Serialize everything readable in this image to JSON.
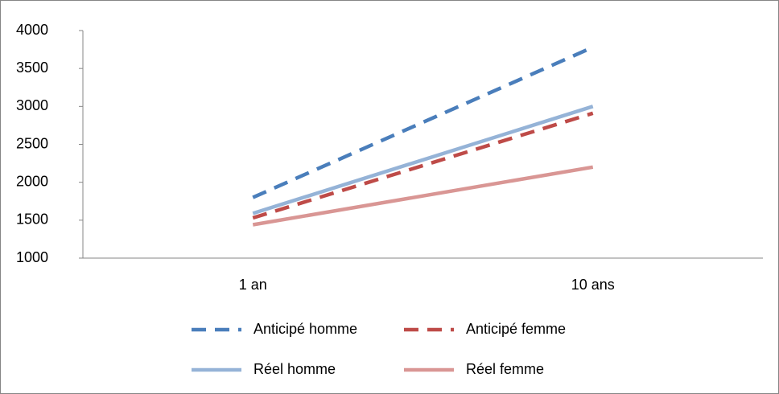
{
  "chart_data": {
    "type": "line",
    "categories": [
      "1 an",
      "10 ans"
    ],
    "series": [
      {
        "name": "Anticipé homme",
        "color": "#4a7ebb",
        "style": "dashed",
        "values": [
          1800,
          3780
        ]
      },
      {
        "name": "Anticipé femme",
        "color": "#be4b48",
        "style": "dashed",
        "values": [
          1530,
          2910
        ]
      },
      {
        "name": "Réel homme",
        "color": "#95b3d7",
        "style": "solid",
        "values": [
          1590,
          3000
        ]
      },
      {
        "name": "Réel femme",
        "color": "#d99694",
        "style": "solid",
        "values": [
          1440,
          2200
        ]
      }
    ],
    "ylim": [
      1000,
      4000
    ],
    "yticks": [
      1000,
      1500,
      2000,
      2500,
      3000,
      3500,
      4000
    ],
    "grid": false,
    "legend": "bottom"
  }
}
